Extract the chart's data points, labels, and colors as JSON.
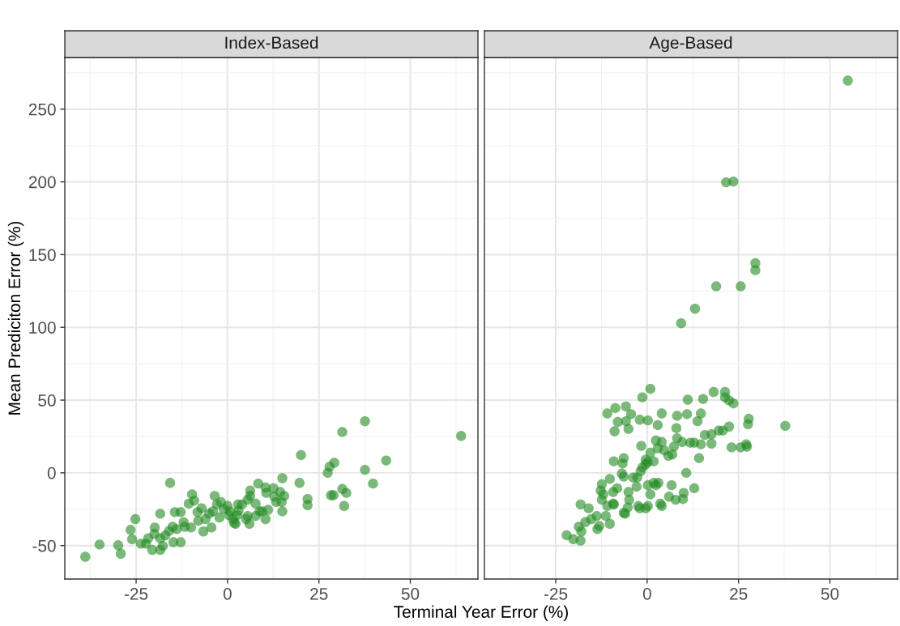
{
  "chart_data": [
    {
      "type": "scatter",
      "title": "Index-Based",
      "xlabel": "Terminal Year Error (%)",
      "ylabel": "Mean Prediciton Error (%)",
      "color": "#228b22",
      "marker": "circle",
      "grid": true,
      "x": [
        -38.9,
        -35.0,
        -29.9,
        -29.2,
        -26.1,
        -26.5,
        -25.2,
        -23.7,
        -22.3,
        -21.7,
        -20.6,
        -18.4,
        -19.9,
        -18.4,
        -18.4,
        -17.7,
        -15.7,
        -15.0,
        -14.8,
        -14.4,
        -12.8,
        -12.8,
        -13.9,
        -11.7,
        -10.6,
        -9.7,
        -9.1,
        -10.0,
        -8.2,
        -7.1,
        -6.6,
        -6.0,
        -4.4,
        -4.0,
        -3.5,
        -2.9,
        -1.8,
        -2.2,
        0,
        0.4,
        1.8,
        2.7,
        2.9,
        4.0,
        6.0,
        5.5,
        6.2,
        6.2,
        7.7,
        8.4,
        8.8,
        10.4,
        10.6,
        10.4,
        11.1,
        12.6,
        12.8,
        0.7,
        1.5,
        2.2,
        5.1,
        5.5,
        7.7,
        9.5,
        13.3,
        14.4,
        14.8,
        15.5,
        15.0,
        15.0,
        19.7,
        20.1,
        21.9,
        21.9,
        27.4,
        27.9,
        29.2,
        28.3,
        29.0,
        31.4,
        32.5,
        31.9,
        31.4,
        37.6,
        37.6,
        39.8,
        43.4,
        63.9,
        -16,
        -12,
        -8,
        -20,
        -17,
        -5,
        -1,
        3
      ],
      "values": [
        -57.7,
        -49.3,
        -49.8,
        -55.6,
        -45.6,
        -39.2,
        -31.8,
        -48.7,
        -48.7,
        -45.0,
        -53.0,
        -53.0,
        -37.6,
        -28.1,
        -45.0,
        -50.3,
        -6.9,
        -37.1,
        -47.7,
        -27.0,
        -27.0,
        -47.7,
        -38.7,
        -37.1,
        -21.2,
        -14.8,
        -19.1,
        -37.6,
        -27.0,
        -24.4,
        -40.3,
        -31.8,
        -37.6,
        -26.5,
        -15.9,
        -21.7,
        -20.1,
        -30.7,
        -22.8,
        -29.1,
        -34.4,
        -29.1,
        -21.7,
        -21.7,
        -35.0,
        -29.7,
        -12.2,
        -15.9,
        -21.2,
        -7.4,
        -26.5,
        -10.1,
        -13.8,
        -31.8,
        -25.4,
        -10.6,
        -16.4,
        -26.5,
        -31.8,
        -35.0,
        -31.8,
        -18.5,
        -29.7,
        -26.5,
        -20.1,
        -13.2,
        -20.1,
        -15.9,
        -26.5,
        -3.7,
        -6.9,
        12.2,
        -18.0,
        -22.2,
        0,
        4.2,
        6.9,
        -15.4,
        -15.4,
        -11.1,
        -13.8,
        -22.8,
        28.1,
        35.5,
        2.1,
        -7.4,
        8.5,
        25.4,
        -40,
        -34,
        -33,
        -42,
        -43,
        -28,
        -25,
        -26
      ],
      "xlim": [
        -44.5,
        68.5
      ],
      "ylim": [
        -73,
        285.5
      ],
      "xticks": [
        -25,
        0,
        25,
        50
      ],
      "yticks": [
        -50,
        0,
        50,
        100,
        150,
        200,
        250
      ]
    },
    {
      "type": "scatter",
      "title": "Age-Based",
      "color": "#228b22",
      "marker": "circle",
      "grid": true,
      "tick_labels": "x",
      "x": [
        -22.0,
        -20.2,
        -18.2,
        -18.0,
        -18.7,
        -18.2,
        -16.0,
        -16.9,
        -15.3,
        -13.8,
        -13.6,
        -13.1,
        -11.3,
        -10.2,
        -12.4,
        -12.7,
        -12.0,
        -12.4,
        -10.9,
        -10.2,
        -9.3,
        -8.2,
        -9.3,
        -9.1,
        -10.9,
        -8.7,
        -5.8,
        -4.4,
        -8.0,
        -5.8,
        -8.9,
        -5.1,
        -9.1,
        -6.4,
        -6.7,
        -6.9,
        -6.4,
        -6.4,
        -6.0,
        -4.9,
        -5.1,
        -5.3,
        -3.8,
        -2.7,
        -2.9,
        -2.4,
        -2.0,
        -0.4,
        0.2,
        -1.8,
        -1.3,
        -0.4,
        0.2,
        0.9,
        1.8,
        2.4,
        3.1,
        3.6,
        4.0,
        -1.6,
        -1.3,
        0.9,
        0.2,
        -2.0,
        2.9,
        4.0,
        0.9,
        -0.4,
        0.2,
        1.8,
        2.4,
        2.9,
        4.0,
        4.7,
        5.8,
        6.7,
        6.0,
        7.8,
        8.2,
        8.0,
        7.3,
        6.9,
        11.1,
        15.3,
        18.2,
        21.3,
        21.3,
        22.4,
        23.6,
        10.9,
        14.7,
        13.8,
        8.2,
        9.6,
        11.8,
        12.9,
        14.7,
        15.8,
        17.6,
        19.6,
        20.7,
        22.4,
        17.6,
        23.1,
        25.6,
        27.1,
        27.3,
        27.8,
        27.6,
        37.8,
        14.2,
        10.7,
        12.9,
        10.0,
        9.8,
        54.9,
        21.6,
        23.6,
        29.6,
        29.6,
        18.9,
        25.6,
        13.1,
        9.3
      ],
      "values": [
        -42.9,
        -45.6,
        -46.6,
        -40.3,
        -37.1,
        -21.7,
        -24.4,
        -33.9,
        -31.8,
        -29.7,
        -38.7,
        -36.5,
        -29.7,
        -35.0,
        -7.9,
        -12.2,
        -14.8,
        -18.5,
        -22.8,
        -4.2,
        -13.2,
        -10.6,
        -21.2,
        -21.7,
        40.8,
        44.5,
        45.6,
        40.3,
        35.0,
        35.5,
        28.6,
        30.2,
        7.9,
        10.1,
        6.4,
        -0.5,
        -2.6,
        -27.5,
        -28.1,
        -18.5,
        -13.2,
        -23.8,
        -3.2,
        -3.2,
        -9.5,
        -22.8,
        -24.4,
        -24.4,
        -22.8,
        1.1,
        3.7,
        5.8,
        -8.5,
        -14.8,
        -6.9,
        -8.5,
        -6.9,
        -21.2,
        -22.8,
        18.5,
        51.9,
        57.7,
        36.0,
        36.5,
        32.8,
        40.8,
        13.8,
        9.0,
        7.4,
        7.9,
        22.2,
        16.9,
        21.2,
        15.4,
        11.7,
        -8.5,
        -16.4,
        -18.5,
        39.2,
        30.7,
        18.0,
        12.7,
        50.3,
        50.8,
        55.6,
        55.6,
        51.9,
        49.8,
        47.7,
        40.3,
        40.8,
        35.5,
        23.8,
        21.2,
        20.7,
        20.7,
        19.6,
        26.0,
        26.5,
        29.1,
        29.1,
        31.8,
        20.1,
        17.5,
        17.5,
        19.6,
        18.0,
        37.1,
        33.4,
        32.3,
        10.1,
        0,
        -10.6,
        -13.8,
        -18.0,
        269.6,
        199.7,
        200.2,
        144.1,
        139.3,
        128.2,
        128.2,
        112.8,
        102.8
      ],
      "xlim": [
        -44.5,
        68.5
      ],
      "ylim": [
        -73,
        285.5
      ],
      "xticks": [
        -25,
        0,
        25,
        50
      ],
      "yticks": [
        -50,
        0,
        50,
        100,
        150,
        200,
        250
      ]
    }
  ]
}
